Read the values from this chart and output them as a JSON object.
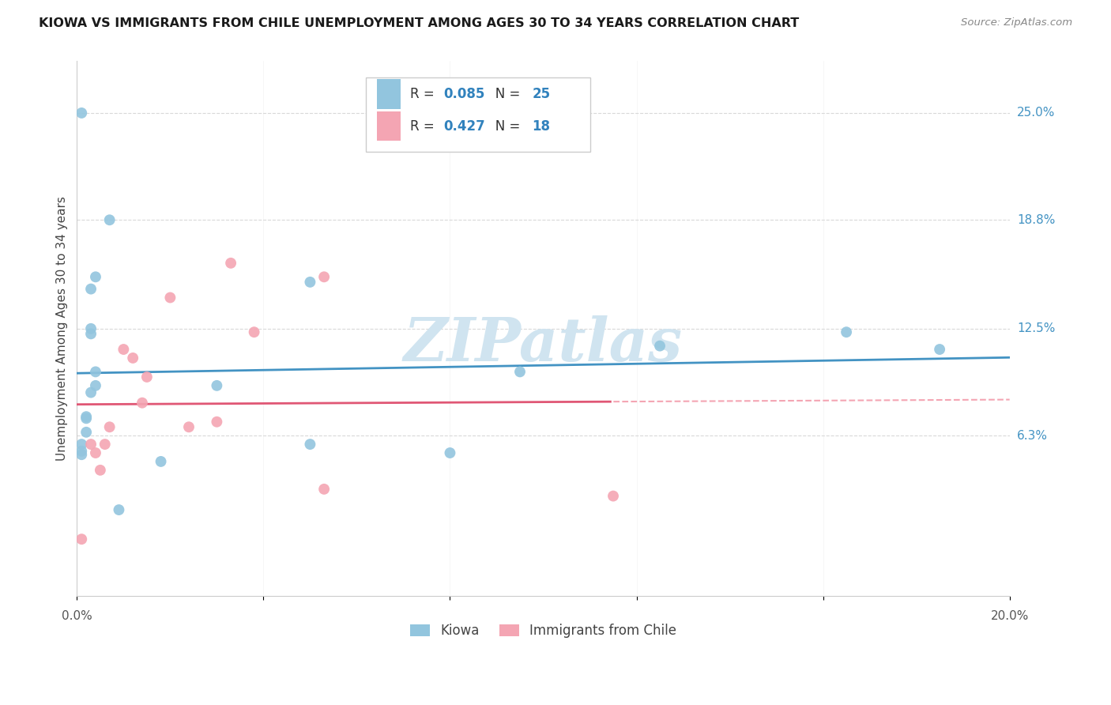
{
  "title": "KIOWA VS IMMIGRANTS FROM CHILE UNEMPLOYMENT AMONG AGES 30 TO 34 YEARS CORRELATION CHART",
  "source": "Source: ZipAtlas.com",
  "ylabel": "Unemployment Among Ages 30 to 34 years",
  "ytick_labels": [
    "25.0%",
    "18.8%",
    "12.5%",
    "6.3%"
  ],
  "ytick_values": [
    0.25,
    0.188,
    0.125,
    0.063
  ],
  "xlim": [
    0.0,
    0.2
  ],
  "ylim": [
    -0.03,
    0.28
  ],
  "legend_blue_r": "0.085",
  "legend_blue_n": "25",
  "legend_pink_r": "0.427",
  "legend_pink_n": "18",
  "blue_scatter_color": "#92c5de",
  "pink_scatter_color": "#f4a5b3",
  "blue_line_color": "#4393c3",
  "pink_line_color": "#e05775",
  "pink_dash_color": "#f4a5b3",
  "legend_r_color": "#3182bd",
  "legend_n_color": "#3182bd",
  "background_color": "#ffffff",
  "grid_color": "#d9d9d9",
  "kiowa_x": [
    0.001,
    0.007,
    0.004,
    0.003,
    0.003,
    0.003,
    0.004,
    0.004,
    0.003,
    0.002,
    0.002,
    0.002,
    0.001,
    0.001,
    0.001,
    0.03,
    0.05,
    0.05,
    0.095,
    0.125,
    0.08,
    0.018,
    0.009,
    0.165,
    0.185
  ],
  "kiowa_y": [
    0.25,
    0.188,
    0.155,
    0.148,
    0.125,
    0.122,
    0.1,
    0.092,
    0.088,
    0.074,
    0.073,
    0.065,
    0.058,
    0.054,
    0.052,
    0.092,
    0.152,
    0.058,
    0.1,
    0.115,
    0.053,
    0.048,
    0.02,
    0.123,
    0.113
  ],
  "chile_x": [
    0.001,
    0.003,
    0.004,
    0.005,
    0.006,
    0.007,
    0.01,
    0.012,
    0.014,
    0.015,
    0.02,
    0.024,
    0.03,
    0.033,
    0.038,
    0.053,
    0.053,
    0.115
  ],
  "chile_y": [
    0.003,
    0.058,
    0.053,
    0.043,
    0.058,
    0.068,
    0.113,
    0.108,
    0.082,
    0.097,
    0.143,
    0.068,
    0.071,
    0.163,
    0.123,
    0.155,
    0.032,
    0.028
  ],
  "marker_size": 100,
  "watermark_text": "ZIPatlas",
  "watermark_color": "#d0e4f0",
  "bottom_legend_kiowa": "Kiowa",
  "bottom_legend_chile": "Immigrants from Chile"
}
